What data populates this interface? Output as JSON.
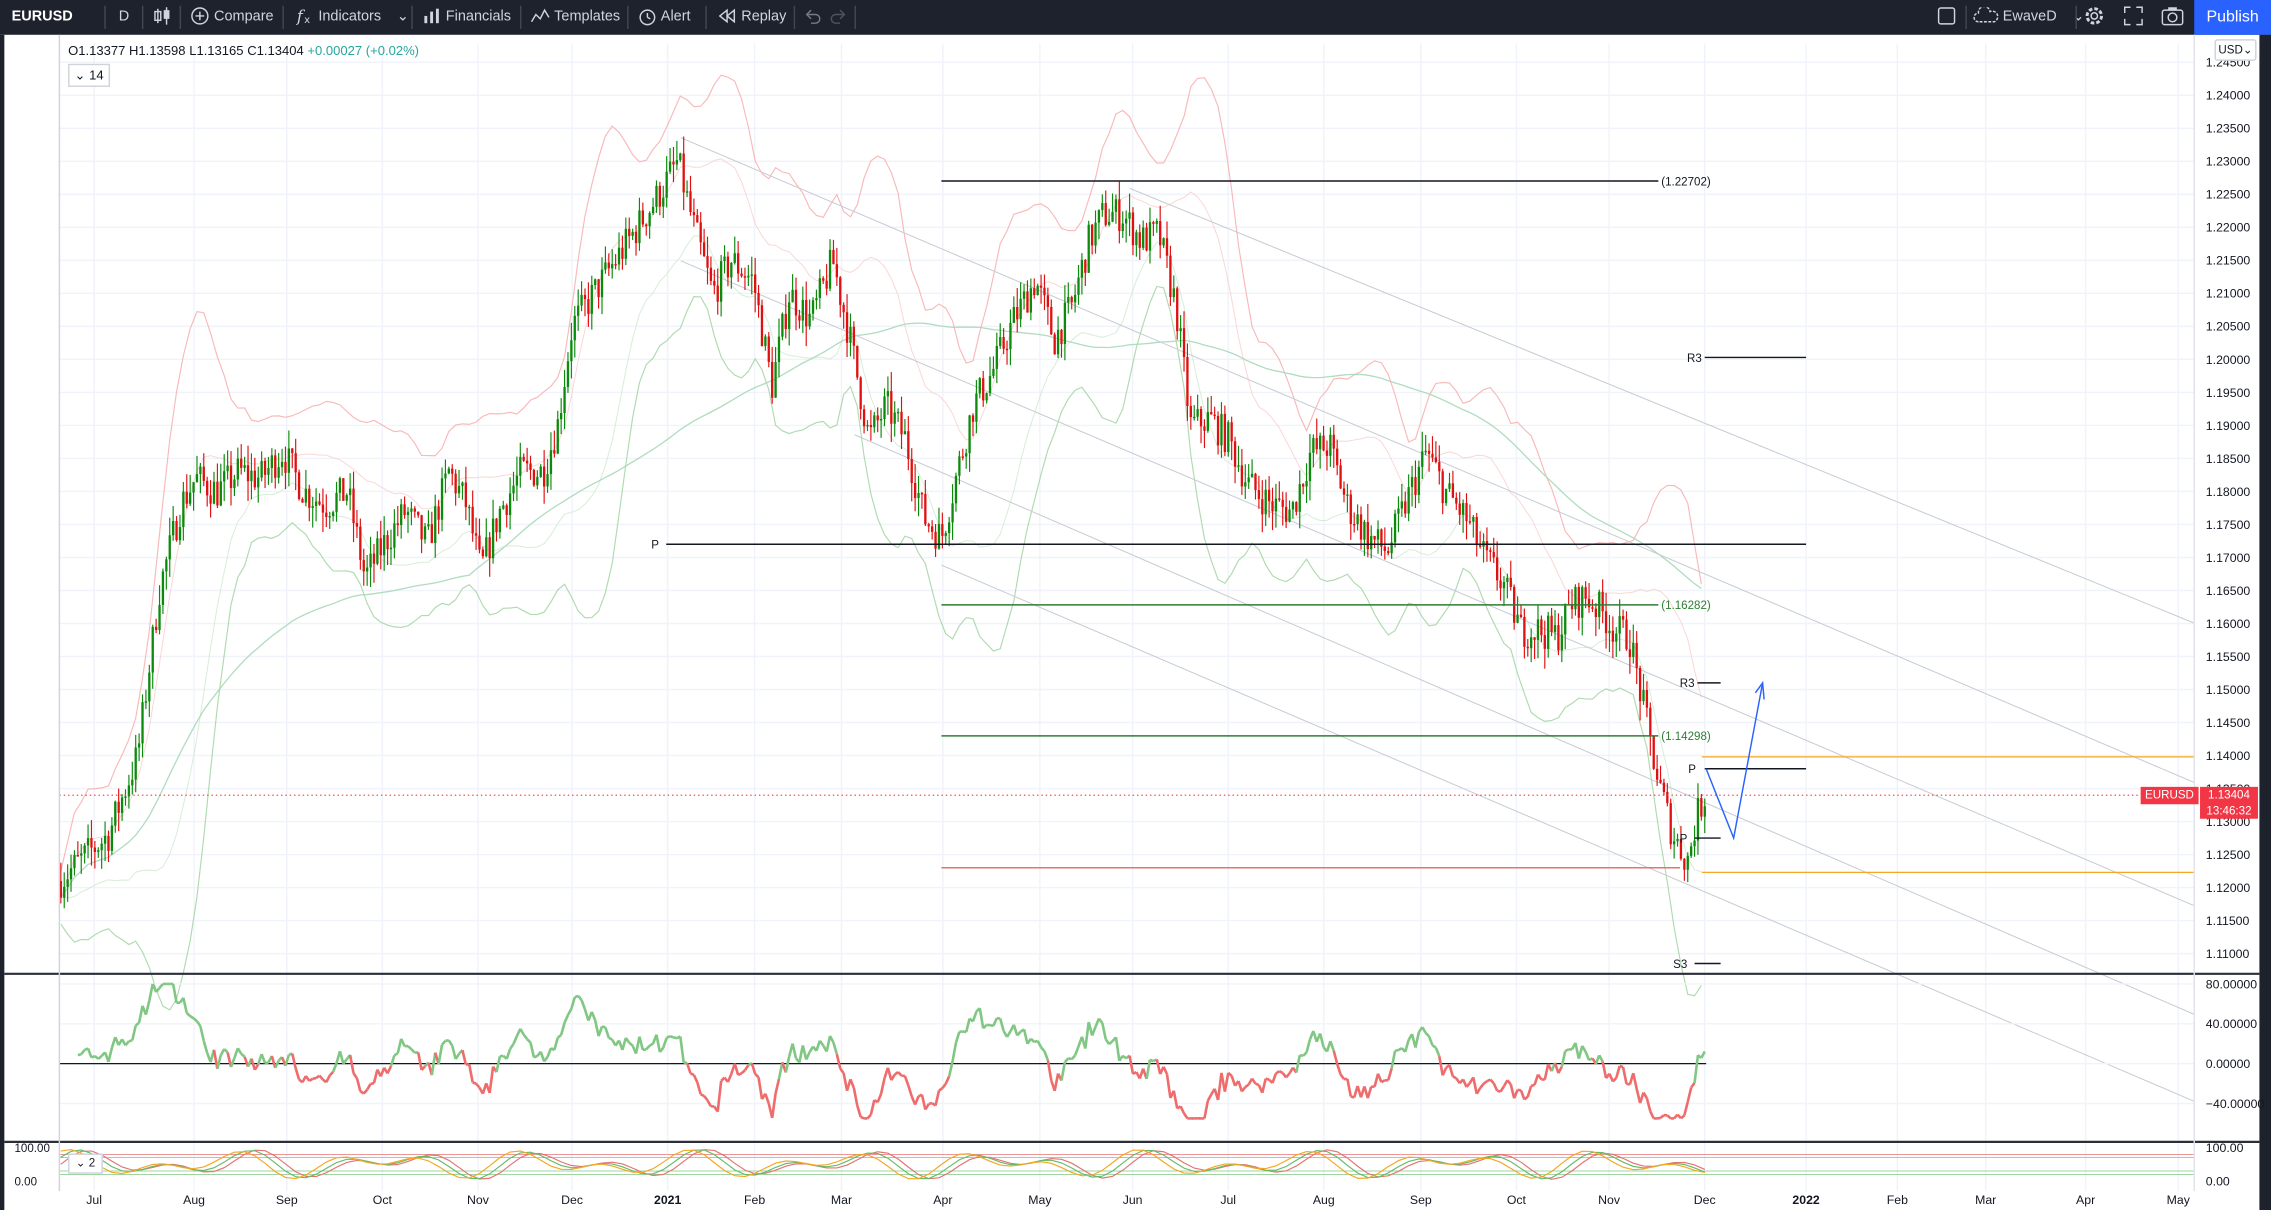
{
  "toolbar": {
    "symbol": "EURUSD",
    "interval": "D",
    "compare": "Compare",
    "indicators": "Indicators",
    "financials": "Financials",
    "templates": "Templates",
    "alert": "Alert",
    "replay": "Replay",
    "layout_name": "EwaveD",
    "publish": "Publish"
  },
  "legend": {
    "open": "O1.13377",
    "high": "H1.13598",
    "low": "L1.13165",
    "close": "C1.13404",
    "change": "+0.00027 (+0.02%)",
    "length_param": "14"
  },
  "currency": "USD",
  "price_tag": {
    "symbol": "EURUSD",
    "price": "1.13404",
    "countdown": "13:46:32"
  },
  "indicator_param": "2",
  "colors": {
    "up": "#089981",
    "down": "#f23645",
    "up_candle": "#0c8a0c",
    "down_candle": "#e01010",
    "accent": "#2962ff"
  },
  "chart_data": {
    "type": "candlestick",
    "price_axis": [
      "1.24500",
      "1.24000",
      "1.23500",
      "1.23000",
      "1.22500",
      "1.22000",
      "1.21500",
      "1.21000",
      "1.20500",
      "1.20000",
      "1.19500",
      "1.19000",
      "1.18500",
      "1.18000",
      "1.17500",
      "1.17000",
      "1.16500",
      "1.16000",
      "1.15500",
      "1.15000",
      "1.14500",
      "1.14000",
      "1.13500",
      "1.13000",
      "1.12500",
      "1.12000",
      "1.11500",
      "1.11000"
    ],
    "time_axis": [
      "Jul",
      "Aug",
      "Sep",
      "Oct",
      "Nov",
      "Dec",
      "2021",
      "Feb",
      "Mar",
      "Apr",
      "May",
      "Jun",
      "Jul",
      "Aug",
      "Sep",
      "Oct",
      "Nov",
      "Dec",
      "2022",
      "Feb",
      "Mar",
      "Apr",
      "May"
    ],
    "levels": [
      {
        "label": "(1.22702)",
        "value": 1.22702,
        "color": "#131722"
      },
      {
        "label": "R3",
        "value": 1.2003,
        "color": "#131722"
      },
      {
        "label": "P",
        "value": 1.172,
        "color": "#131722"
      },
      {
        "label": "(1.16282)",
        "value": 1.16282,
        "color": "#2e7d32"
      },
      {
        "label": "R3",
        "value": 1.151,
        "color": "#131722"
      },
      {
        "label": "(1.14298)",
        "value": 1.14298,
        "color": "#2e7d32"
      },
      {
        "label": "P",
        "value": 1.138,
        "color": "#131722"
      },
      {
        "label": "P",
        "value": 1.1275,
        "color": "#131722"
      },
      {
        "label": "S3",
        "value": 1.1085,
        "color": "#131722"
      }
    ],
    "oscillator_axis": [
      "80.00000",
      "40.00000",
      "0.00000",
      "−40.00000"
    ],
    "stoch_axis": [
      "100.00",
      "0.00"
    ],
    "bottom_axis": [
      "100.00",
      "0.00"
    ]
  }
}
